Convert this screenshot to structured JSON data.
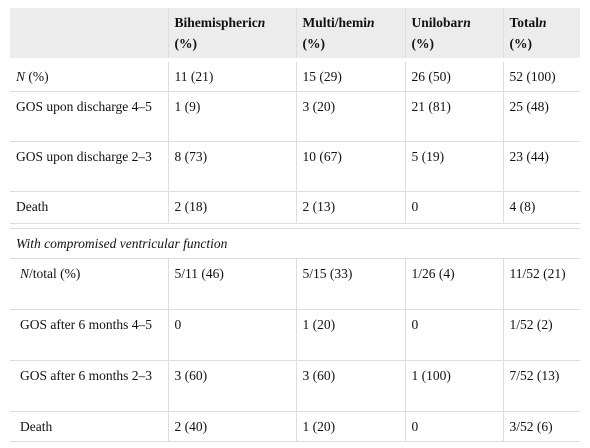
{
  "table": {
    "header": [
      [],
      [
        {
          "text": "Bihemispheric"
        },
        {
          "text": "n",
          "italic": true
        },
        {
          "text": "(%)"
        }
      ],
      [
        {
          "text": "Multi/hemi"
        },
        {
          "text": "n",
          "italic": true
        },
        {
          "text": "(%)"
        }
      ],
      [
        {
          "text": "Unilobar"
        },
        {
          "text": "n",
          "italic": true
        },
        {
          "text": "(%)"
        }
      ],
      [
        {
          "text": "Total"
        },
        {
          "text": "n",
          "italic": true
        },
        {
          "text": "(%)"
        }
      ]
    ],
    "rows": [
      {
        "cells": [
          [
            {
              "text": "N",
              "italic": true
            },
            {
              "text": " (%)"
            }
          ],
          "11 (21)",
          "15 (29)",
          "26 (50)",
          "52 (100)"
        ]
      },
      {
        "cells": [
          [
            {
              "text": "GOS upon discharge 4–5"
            }
          ],
          "1 (9)",
          "3 (20)",
          "21 (81)",
          "25 (48)"
        ]
      },
      {
        "cells": [
          [
            {
              "text": "GOS upon discharge 2–3"
            }
          ],
          "8 (73)",
          "10 (67)",
          "5 (19)",
          "23 (44)"
        ]
      },
      {
        "cells": [
          [
            {
              "text": "Death"
            }
          ],
          "2 (18)",
          "2 (13)",
          "0",
          "4 (8)"
        ]
      },
      {
        "section": [
          {
            "text": "With compromised ventricular function",
            "italic": true
          }
        ]
      },
      {
        "cells": [
          [
            {
              "text": "N",
              "italic": true
            },
            {
              "text": "/total (%)"
            }
          ],
          "5/11 (46)",
          "5/15 (33)",
          "1/26 (4)",
          "11/52 (21)"
        ]
      },
      {
        "cells": [
          [
            {
              "text": "GOS after 6 months 4–5"
            }
          ],
          "0",
          "1 (20)",
          "0",
          "1/52 (2)"
        ]
      },
      {
        "cells": [
          [
            {
              "text": "GOS after 6 months 2–3"
            }
          ],
          "3 (60)",
          "3 (60)",
          "1 (100)",
          "7/52 (13)"
        ]
      },
      {
        "cells": [
          [
            {
              "text": "Death"
            }
          ],
          "2 (40)",
          "1 (20)",
          "0",
          "3/52 (6)"
        ]
      }
    ]
  }
}
